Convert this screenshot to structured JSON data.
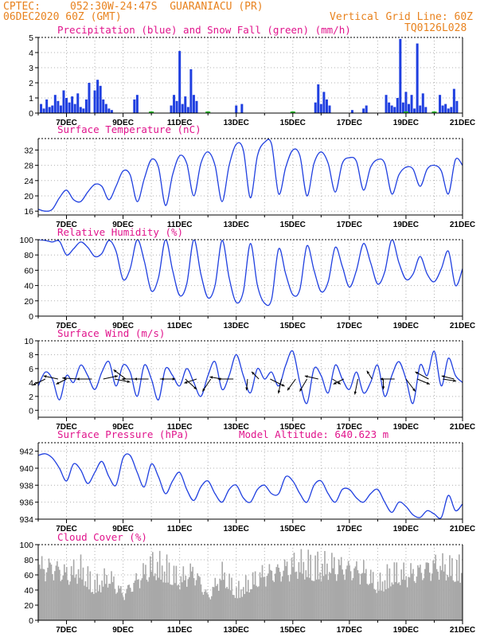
{
  "header": {
    "source": "CPTEC:",
    "location": "052:30W-24:47S  GUARANIACU (PR)",
    "run": "06DEC2020 60Z (GMT)",
    "grid_note": "Vertical Grid Line: 60Z",
    "code": "TQ0126L028"
  },
  "colors": {
    "precip": "#1f3fe0",
    "snow": "#20c020",
    "line": "#2040e0",
    "cloud": "#a8a8a8",
    "title": "#e0148c",
    "header": "#e8821e"
  },
  "chart_data": [
    {
      "id": "precip",
      "type": "bar",
      "title": "Precipitation (blue) and Snow Fall (green) (mm/h)",
      "ylim": [
        0,
        5
      ],
      "yticks": [
        0,
        1,
        2,
        3,
        4,
        5
      ],
      "x_tick_labels": [
        "7DEC",
        "9DEC",
        "11DEC",
        "13DEC",
        "15DEC",
        "17DEC",
        "19DEC",
        "21DEC"
      ],
      "x_range_days": [
        6,
        21
      ],
      "series": [
        {
          "name": "Precipitation",
          "x_days": [
            6.1,
            6.2,
            6.3,
            6.4,
            6.5,
            6.6,
            6.7,
            6.8,
            6.9,
            7.0,
            7.1,
            7.2,
            7.3,
            7.4,
            7.5,
            7.6,
            7.7,
            7.8,
            8.0,
            8.1,
            8.2,
            8.3,
            8.4,
            8.5,
            8.6,
            9.4,
            9.5,
            10.7,
            10.8,
            10.9,
            11.0,
            11.1,
            11.2,
            11.3,
            11.4,
            11.5,
            11.6,
            13.0,
            13.2,
            15.8,
            15.9,
            16.0,
            16.1,
            16.2,
            16.3,
            17.1,
            17.5,
            17.6,
            18.3,
            18.4,
            18.5,
            18.6,
            18.7,
            18.8,
            18.9,
            19.0,
            19.1,
            19.2,
            19.3,
            19.4,
            19.5,
            19.6,
            19.7,
            20.2,
            20.3,
            20.4,
            20.5,
            20.6,
            20.7,
            20.8
          ],
          "values": [
            0.6,
            0.3,
            0.9,
            0.4,
            0.5,
            1.2,
            0.8,
            0.5,
            1.5,
            1.0,
            0.7,
            1.1,
            0.6,
            1.3,
            0.4,
            0.3,
            0.9,
            2.0,
            1.5,
            2.2,
            1.8,
            0.9,
            0.6,
            0.3,
            0.2,
            0.9,
            1.2,
            0.5,
            1.2,
            0.8,
            4.1,
            0.6,
            1.1,
            0.4,
            2.9,
            1.2,
            0.8,
            0.5,
            0.6,
            0.7,
            1.9,
            0.6,
            1.4,
            0.9,
            0.5,
            0.2,
            0.3,
            0.5,
            1.2,
            0.7,
            0.5,
            0.4,
            1.0,
            4.9,
            0.7,
            1.4,
            0.6,
            1.2,
            0.3,
            4.6,
            0.5,
            1.3,
            0.4,
            1.2,
            0.5,
            0.6,
            0.3,
            0.4,
            1.6,
            0.8
          ]
        },
        {
          "name": "Snow Fall",
          "x_days": [
            10.0,
            12.0,
            15.0,
            19.0,
            20.0
          ],
          "values": [
            0.05,
            0.05,
            0.05,
            0.05,
            0.05
          ]
        }
      ]
    },
    {
      "id": "temp",
      "type": "line",
      "title": "Surface Temperature (nC)",
      "ylim": [
        15,
        35
      ],
      "yticks": [
        16,
        20,
        24,
        28,
        32
      ],
      "x_tick_labels": [
        "7DEC",
        "9DEC",
        "11DEC",
        "13DEC",
        "15DEC",
        "17DEC",
        "19DEC",
        "21DEC"
      ],
      "x_range_days": [
        6,
        21
      ],
      "x_days": [
        6.0,
        6.25,
        6.5,
        6.75,
        7.0,
        7.25,
        7.5,
        7.75,
        8.0,
        8.25,
        8.5,
        8.75,
        9.0,
        9.25,
        9.5,
        9.75,
        10.0,
        10.25,
        10.5,
        10.75,
        11.0,
        11.25,
        11.5,
        11.75,
        12.0,
        12.25,
        12.5,
        12.75,
        13.0,
        13.25,
        13.5,
        13.75,
        14.0,
        14.25,
        14.5,
        14.75,
        15.0,
        15.25,
        15.5,
        15.75,
        16.0,
        16.25,
        16.5,
        16.75,
        17.0,
        17.25,
        17.5,
        17.75,
        18.0,
        18.25,
        18.5,
        18.75,
        19.0,
        19.25,
        19.5,
        19.75,
        20.0,
        20.25,
        20.5,
        20.75,
        21.0
      ],
      "values": [
        16.5,
        16.0,
        16.5,
        19.5,
        21.5,
        19.0,
        18.5,
        21.0,
        23.0,
        22.5,
        19.0,
        22.5,
        26.5,
        25.5,
        18.5,
        24.5,
        29.5,
        27.5,
        17.5,
        25.5,
        30.5,
        28.5,
        20.0,
        28.5,
        31.5,
        28.0,
        18.5,
        28.0,
        33.5,
        32.0,
        19.5,
        30.5,
        34.0,
        33.5,
        20.5,
        27.5,
        32.0,
        30.5,
        20.0,
        28.5,
        31.5,
        28.5,
        21.0,
        28.5,
        30.0,
        29.0,
        21.5,
        27.5,
        29.5,
        28.5,
        20.5,
        25.5,
        27.5,
        27.0,
        22.5,
        27.0,
        28.0,
        26.5,
        20.5,
        29.5,
        28.0
      ]
    },
    {
      "id": "rh",
      "type": "line",
      "title": "Relative Humidity (%)",
      "ylim": [
        0,
        100
      ],
      "yticks": [
        0,
        20,
        40,
        60,
        80,
        100
      ],
      "x_tick_labels": [
        "7DEC",
        "9DEC",
        "11DEC",
        "13DEC",
        "15DEC",
        "17DEC",
        "19DEC",
        "21DEC"
      ],
      "x_range_days": [
        6,
        21
      ],
      "x_days": [
        6.0,
        6.25,
        6.5,
        6.75,
        7.0,
        7.25,
        7.5,
        7.75,
        8.0,
        8.25,
        8.5,
        8.75,
        9.0,
        9.25,
        9.5,
        9.75,
        10.0,
        10.25,
        10.5,
        10.75,
        11.0,
        11.25,
        11.5,
        11.75,
        12.0,
        12.25,
        12.5,
        12.75,
        13.0,
        13.25,
        13.5,
        13.75,
        14.0,
        14.25,
        14.5,
        14.75,
        15.0,
        15.25,
        15.5,
        15.75,
        16.0,
        16.25,
        16.5,
        16.75,
        17.0,
        17.25,
        17.5,
        17.75,
        18.0,
        18.25,
        18.5,
        18.75,
        19.0,
        19.25,
        19.5,
        19.75,
        20.0,
        20.25,
        20.5,
        20.75,
        21.0
      ],
      "values": [
        100,
        99,
        97,
        98,
        80,
        88,
        97,
        90,
        78,
        82,
        99,
        85,
        48,
        62,
        100,
        72,
        33,
        50,
        100,
        60,
        27,
        42,
        100,
        55,
        24,
        40,
        99,
        50,
        18,
        32,
        95,
        40,
        17,
        22,
        88,
        55,
        28,
        35,
        92,
        60,
        32,
        45,
        90,
        65,
        38,
        60,
        95,
        70,
        42,
        58,
        100,
        70,
        48,
        55,
        78,
        55,
        45,
        62,
        85,
        40,
        62
      ]
    },
    {
      "id": "wind",
      "type": "line",
      "title": "Surface Wind (m/s)",
      "ylim": [
        -1,
        10
      ],
      "yticks": [
        0,
        2,
        4,
        6,
        8,
        10
      ],
      "x_tick_labels": [
        "7DEC",
        "9DEC",
        "11DEC",
        "13DEC",
        "15DEC",
        "17DEC",
        "19DEC",
        "21DEC"
      ],
      "x_range_days": [
        6,
        21
      ],
      "x_days": [
        6.0,
        6.25,
        6.5,
        6.75,
        7.0,
        7.25,
        7.5,
        7.75,
        8.0,
        8.25,
        8.5,
        8.75,
        9.0,
        9.25,
        9.5,
        9.75,
        10.0,
        10.25,
        10.5,
        10.75,
        11.0,
        11.25,
        11.5,
        11.75,
        12.0,
        12.25,
        12.5,
        12.75,
        13.0,
        13.25,
        13.5,
        13.75,
        14.0,
        14.25,
        14.5,
        14.75,
        15.0,
        15.25,
        15.5,
        15.75,
        16.0,
        16.25,
        16.5,
        16.75,
        17.0,
        17.25,
        17.5,
        17.75,
        18.0,
        18.25,
        18.5,
        18.75,
        19.0,
        19.25,
        19.5,
        19.75,
        20.0,
        20.25,
        20.5,
        20.75,
        21.0
      ],
      "values": [
        3.5,
        5.5,
        4.5,
        1.5,
        5.0,
        4.0,
        6.5,
        5.0,
        3.0,
        5.5,
        7.0,
        3.5,
        6.5,
        5.5,
        2.0,
        6.5,
        4.5,
        1.5,
        6.0,
        5.0,
        3.5,
        6.0,
        4.0,
        2.0,
        5.0,
        7.0,
        3.0,
        5.0,
        8.0,
        5.0,
        2.5,
        6.0,
        4.5,
        5.5,
        3.5,
        6.5,
        8.5,
        4.0,
        1.0,
        6.0,
        5.0,
        2.5,
        6.5,
        4.5,
        3.0,
        5.5,
        2.5,
        4.0,
        6.5,
        2.0,
        5.0,
        7.0,
        4.5,
        1.0,
        6.5,
        5.0,
        8.5,
        3.5,
        7.5,
        5.0,
        4.0
      ],
      "arrows": [
        {
          "day": 6.25,
          "u": -1.2,
          "v": -0.6
        },
        {
          "day": 6.7,
          "u": -1.4,
          "v": 0.3
        },
        {
          "day": 7.0,
          "u": -1.0,
          "v": -0.5
        },
        {
          "day": 7.4,
          "u": -1.5,
          "v": 0.1
        },
        {
          "day": 7.9,
          "u": -1.5,
          "v": 0.0
        },
        {
          "day": 8.3,
          "u": 1.4,
          "v": 0.3
        },
        {
          "day": 8.7,
          "u": 1.5,
          "v": -0.3
        },
        {
          "day": 9.1,
          "u": -1.2,
          "v": 0.9
        },
        {
          "day": 9.5,
          "u": -1.5,
          "v": 0.0
        },
        {
          "day": 9.9,
          "u": -1.4,
          "v": 0.0
        },
        {
          "day": 10.3,
          "u": 1.5,
          "v": 0.0
        },
        {
          "day": 10.7,
          "u": -1.0,
          "v": 0.0
        },
        {
          "day": 11.2,
          "u": 1.1,
          "v": -1.0
        },
        {
          "day": 11.6,
          "u": -1.2,
          "v": -0.4
        },
        {
          "day": 12.1,
          "u": -0.8,
          "v": -1.2
        },
        {
          "day": 12.5,
          "u": -1.2,
          "v": 0.2
        },
        {
          "day": 12.9,
          "u": -1.5,
          "v": 0.0
        },
        {
          "day": 13.4,
          "u": -0.1,
          "v": -1.1
        },
        {
          "day": 13.8,
          "u": -0.7,
          "v": 0.7
        },
        {
          "day": 14.2,
          "u": 1.4,
          "v": -0.7
        },
        {
          "day": 14.6,
          "u": -0.3,
          "v": -1.4
        },
        {
          "day": 15.1,
          "u": -0.8,
          "v": -1.1
        },
        {
          "day": 15.5,
          "u": -0.7,
          "v": -1.2
        },
        {
          "day": 15.9,
          "u": -1.3,
          "v": 0.3
        },
        {
          "day": 16.4,
          "u": 0.8,
          "v": -0.5
        },
        {
          "day": 16.8,
          "u": -1.0,
          "v": -0.5
        },
        {
          "day": 17.3,
          "u": -0.3,
          "v": -1.5
        },
        {
          "day": 17.8,
          "u": -0.5,
          "v": 0.8
        },
        {
          "day": 18.2,
          "u": 0.0,
          "v": -1.0
        },
        {
          "day": 18.6,
          "u": -1.4,
          "v": 0.0
        },
        {
          "day": 19.0,
          "u": 0.9,
          "v": -1.2
        },
        {
          "day": 19.4,
          "u": 1.2,
          "v": -0.5
        },
        {
          "day": 19.8,
          "u": -1.3,
          "v": 0.7
        },
        {
          "day": 20.3,
          "u": 1.3,
          "v": -0.2
        },
        {
          "day": 20.7,
          "u": -1.2,
          "v": 0.3
        }
      ]
    },
    {
      "id": "pressure",
      "type": "line",
      "title": "Surface Pressure (hPa)",
      "annotation": "Model Altitude: 640.623 m",
      "ylim": [
        934,
        943
      ],
      "yticks": [
        934,
        936,
        938,
        940,
        942
      ],
      "x_tick_labels": [
        "7DEC",
        "9DEC",
        "11DEC",
        "13DEC",
        "15DEC",
        "17DEC",
        "19DEC",
        "21DEC"
      ],
      "x_range_days": [
        6,
        21
      ],
      "x_days": [
        6.0,
        6.25,
        6.5,
        6.75,
        7.0,
        7.25,
        7.5,
        7.75,
        8.0,
        8.25,
        8.5,
        8.75,
        9.0,
        9.25,
        9.5,
        9.75,
        10.0,
        10.25,
        10.5,
        10.75,
        11.0,
        11.25,
        11.5,
        11.75,
        12.0,
        12.25,
        12.5,
        12.75,
        13.0,
        13.25,
        13.5,
        13.75,
        14.0,
        14.25,
        14.5,
        14.75,
        15.0,
        15.25,
        15.5,
        15.75,
        16.0,
        16.25,
        16.5,
        16.75,
        17.0,
        17.25,
        17.5,
        17.75,
        18.0,
        18.25,
        18.5,
        18.75,
        19.0,
        19.25,
        19.5,
        19.75,
        20.0,
        20.25,
        20.5,
        20.75,
        21.0
      ],
      "values": [
        941.5,
        941.7,
        941.2,
        940.0,
        938.5,
        940.5,
        939.8,
        938.2,
        939.5,
        940.8,
        939.0,
        938.0,
        941.2,
        941.5,
        939.5,
        937.8,
        940.5,
        939.0,
        937.0,
        938.5,
        939.5,
        937.5,
        936.2,
        937.8,
        938.5,
        937.0,
        936.0,
        937.5,
        938.0,
        936.5,
        936.0,
        937.5,
        938.0,
        937.0,
        937.0,
        939.0,
        938.5,
        937.0,
        936.0,
        938.0,
        938.5,
        937.0,
        936.0,
        937.5,
        937.5,
        936.5,
        936.0,
        937.0,
        937.5,
        936.0,
        934.8,
        936.0,
        935.5,
        934.5,
        934.2,
        935.0,
        934.6,
        934.2,
        936.8,
        935.0,
        935.8
      ]
    },
    {
      "id": "cloud",
      "type": "bar",
      "title": "Cloud Cover (%)",
      "ylim": [
        0,
        100
      ],
      "yticks": [
        0,
        20,
        40,
        60,
        80,
        100
      ],
      "x_tick_labels": [
        "7DEC",
        "9DEC",
        "11DEC",
        "13DEC",
        "15DEC",
        "17DEC",
        "19DEC",
        "21DEC"
      ],
      "x_range_days": [
        6,
        21
      ],
      "profile_days": [
        6.0,
        6.5,
        7.0,
        7.5,
        8.0,
        8.5,
        9.0,
        9.5,
        10.0,
        10.5,
        11.0,
        11.5,
        12.0,
        12.5,
        13.0,
        13.5,
        14.0,
        14.5,
        15.0,
        15.5,
        16.0,
        16.5,
        17.0,
        17.5,
        18.0,
        18.5,
        19.0,
        19.5,
        20.0,
        20.5,
        21.0
      ],
      "profile_values": [
        90,
        92,
        80,
        88,
        60,
        75,
        45,
        70,
        95,
        90,
        70,
        85,
        40,
        80,
        50,
        65,
        80,
        85,
        95,
        96,
        92,
        95,
        88,
        85,
        60,
        82,
        78,
        85,
        95,
        90,
        88
      ]
    }
  ]
}
